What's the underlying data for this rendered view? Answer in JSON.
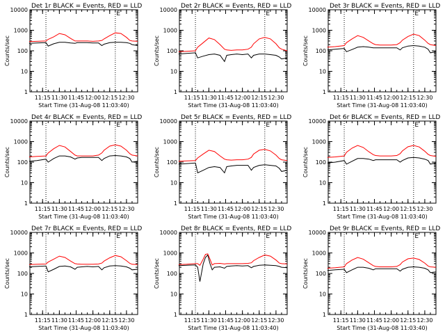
{
  "chart_data": {
    "type": "line",
    "y_scale": "log",
    "ylim": [
      1,
      10000
    ],
    "yticks": [
      1,
      10,
      100,
      1000,
      10000
    ],
    "ytick_labels": [
      "1",
      "10",
      "100",
      "1000",
      "10000"
    ],
    "xlim": [
      "11:03:40",
      "12:40:00"
    ],
    "xticks": [
      "11:15",
      "11:30",
      "11:45",
      "12:00",
      "12:15",
      "12:30"
    ],
    "vlines": [
      "11:18",
      "12:20"
    ],
    "ylabel": "Counts/sec",
    "xlabel": "Start Time (31-Aug-08 11:03:40)",
    "series_colors": {
      "events": "#000000",
      "lld": "#ff0000"
    },
    "panels": [
      {
        "title": "Det 1r BLACK = Events, RED = LLD",
        "marker": "E",
        "x": [
          "11:03",
          "11:10",
          "11:18",
          "11:20",
          "11:25",
          "11:30",
          "11:35",
          "11:40",
          "11:44",
          "11:46",
          "11:50",
          "11:55",
          "12:00",
          "12:05",
          "12:08",
          "12:10",
          "12:15",
          "12:20",
          "12:25",
          "12:30",
          "12:33",
          "12:35",
          "12:40"
        ],
        "events": [
          230,
          240,
          250,
          170,
          220,
          260,
          260,
          240,
          230,
          250,
          250,
          250,
          240,
          240,
          180,
          210,
          250,
          260,
          260,
          250,
          230,
          200,
          180
        ],
        "lld": [
          280,
          290,
          300,
          360,
          480,
          700,
          600,
          400,
          300,
          300,
          300,
          300,
          290,
          300,
          320,
          380,
          550,
          750,
          700,
          450,
          320,
          300,
          290
        ]
      },
      {
        "title": "Det 2r BLACK = Events, RED = LLD",
        "marker": "E",
        "x": [
          "11:03",
          "11:10",
          "11:18",
          "11:20",
          "11:25",
          "11:30",
          "11:35",
          "11:40",
          "11:44",
          "11:46",
          "11:50",
          "11:55",
          "12:00",
          "12:05",
          "12:08",
          "12:10",
          "12:15",
          "12:20",
          "12:25",
          "12:30",
          "12:33",
          "12:35",
          "12:40"
        ],
        "events": [
          70,
          75,
          80,
          45,
          55,
          65,
          70,
          60,
          30,
          60,
          65,
          70,
          65,
          70,
          45,
          60,
          70,
          70,
          65,
          60,
          50,
          40,
          45
        ],
        "lld": [
          90,
          95,
          100,
          150,
          250,
          420,
          350,
          200,
          120,
          110,
          105,
          110,
          110,
          120,
          150,
          220,
          380,
          450,
          380,
          220,
          140,
          120,
          100
        ]
      },
      {
        "title": "Det 3r BLACK = Events, RED = LLD",
        "marker": "E",
        "x": [
          "11:03",
          "11:10",
          "11:18",
          "11:20",
          "11:25",
          "11:30",
          "11:35",
          "11:40",
          "11:44",
          "11:46",
          "11:50",
          "11:55",
          "12:00",
          "12:05",
          "12:08",
          "12:10",
          "12:15",
          "12:20",
          "12:25",
          "12:30",
          "12:33",
          "12:35",
          "12:40"
        ],
        "events": [
          110,
          120,
          130,
          90,
          115,
          150,
          160,
          150,
          140,
          140,
          140,
          140,
          140,
          140,
          110,
          140,
          170,
          180,
          170,
          150,
          120,
          80,
          90
        ],
        "lld": [
          150,
          160,
          180,
          250,
          380,
          550,
          450,
          300,
          220,
          200,
          190,
          190,
          190,
          200,
          250,
          330,
          500,
          650,
          550,
          330,
          230,
          200,
          180
        ]
      },
      {
        "title": "Det 4r BLACK = Events, RED = LLD",
        "marker": "E",
        "x": [
          "11:03",
          "11:10",
          "11:18",
          "11:20",
          "11:25",
          "11:30",
          "11:35",
          "11:40",
          "11:44",
          "11:46",
          "11:50",
          "11:55",
          "12:00",
          "12:05",
          "12:08",
          "12:10",
          "12:15",
          "12:20",
          "12:25",
          "12:30",
          "12:33",
          "12:35",
          "12:40"
        ],
        "events": [
          110,
          120,
          140,
          100,
          150,
          200,
          200,
          180,
          140,
          160,
          170,
          170,
          170,
          170,
          120,
          150,
          200,
          210,
          200,
          180,
          150,
          100,
          110
        ],
        "lld": [
          180,
          190,
          200,
          280,
          450,
          650,
          550,
          330,
          220,
          200,
          200,
          200,
          200,
          220,
          280,
          380,
          600,
          700,
          600,
          380,
          260,
          220,
          200
        ]
      },
      {
        "title": "Det 5r BLACK = Events, RED = LLD",
        "marker": "E",
        "x": [
          "11:03",
          "11:10",
          "11:18",
          "11:20",
          "11:25",
          "11:30",
          "11:35",
          "11:40",
          "11:44",
          "11:46",
          "11:50",
          "11:55",
          "12:00",
          "12:05",
          "12:08",
          "12:10",
          "12:15",
          "12:20",
          "12:25",
          "12:30",
          "12:33",
          "12:35",
          "12:40"
        ],
        "events": [
          80,
          85,
          90,
          30,
          40,
          55,
          60,
          55,
          30,
          60,
          65,
          70,
          70,
          70,
          40,
          55,
          70,
          75,
          70,
          65,
          50,
          35,
          40
        ],
        "lld": [
          110,
          115,
          120,
          160,
          250,
          380,
          330,
          200,
          140,
          130,
          125,
          130,
          130,
          140,
          170,
          250,
          380,
          420,
          350,
          220,
          150,
          130,
          120
        ]
      },
      {
        "title": "Det 6r BLACK = Events, RED = LLD",
        "marker": "E",
        "x": [
          "11:03",
          "11:10",
          "11:18",
          "11:20",
          "11:25",
          "11:30",
          "11:35",
          "11:40",
          "11:44",
          "11:46",
          "11:50",
          "11:55",
          "12:00",
          "12:05",
          "12:08",
          "12:10",
          "12:15",
          "12:20",
          "12:25",
          "12:30",
          "12:33",
          "12:35",
          "12:40"
        ],
        "events": [
          90,
          100,
          120,
          80,
          110,
          150,
          150,
          140,
          120,
          130,
          130,
          130,
          130,
          130,
          100,
          120,
          160,
          170,
          160,
          140,
          120,
          80,
          90
        ],
        "lld": [
          170,
          180,
          200,
          300,
          480,
          650,
          520,
          320,
          230,
          210,
          200,
          200,
          200,
          210,
          260,
          350,
          560,
          650,
          550,
          340,
          240,
          210,
          190
        ]
      },
      {
        "title": "Det 7r BLACK = Events, RED = LLD",
        "marker": "E",
        "x": [
          "11:03",
          "11:10",
          "11:18",
          "11:20",
          "11:25",
          "11:30",
          "11:35",
          "11:40",
          "11:44",
          "11:46",
          "11:50",
          "11:55",
          "12:00",
          "12:05",
          "12:08",
          "12:10",
          "12:15",
          "12:20",
          "12:25",
          "12:30",
          "12:33",
          "12:35",
          "12:40"
        ],
        "events": [
          210,
          220,
          230,
          120,
          160,
          220,
          230,
          210,
          160,
          200,
          210,
          220,
          210,
          220,
          150,
          190,
          230,
          240,
          230,
          210,
          180,
          150,
          160
        ],
        "lld": [
          270,
          280,
          290,
          360,
          500,
          700,
          600,
          400,
          300,
          290,
          280,
          280,
          280,
          290,
          320,
          400,
          580,
          750,
          650,
          420,
          310,
          280,
          270
        ]
      },
      {
        "title": "Det 8r BLACK = Events, RED = LLD",
        "marker": "E",
        "x": [
          "11:03",
          "11:10",
          "11:18",
          "11:20",
          "11:22",
          "11:25",
          "11:27",
          "11:29",
          "11:31",
          "11:33",
          "11:35",
          "11:40",
          "11:44",
          "11:46",
          "11:50",
          "11:55",
          "12:00",
          "12:05",
          "12:08",
          "12:10",
          "12:15",
          "12:20",
          "12:25",
          "12:30",
          "12:33",
          "12:35",
          "12:40"
        ],
        "events": [
          240,
          250,
          260,
          200,
          40,
          300,
          600,
          800,
          300,
          150,
          200,
          210,
          180,
          220,
          230,
          240,
          230,
          240,
          190,
          220,
          250,
          260,
          250,
          240,
          220,
          200,
          190
        ],
        "lld": [
          270,
          280,
          300,
          300,
          250,
          500,
          850,
          900,
          500,
          260,
          300,
          310,
          290,
          300,
          300,
          300,
          300,
          310,
          330,
          420,
          600,
          800,
          700,
          450,
          320,
          300,
          290
        ]
      },
      {
        "title": "Det 9r BLACK = Events, RED = LLD",
        "marker": "E",
        "x": [
          "11:03",
          "11:10",
          "11:18",
          "11:20",
          "11:25",
          "11:30",
          "11:35",
          "11:40",
          "11:44",
          "11:46",
          "11:50",
          "11:55",
          "12:00",
          "12:05",
          "12:08",
          "12:10",
          "12:15",
          "12:20",
          "12:25",
          "12:30",
          "12:33",
          "12:35",
          "12:40"
        ],
        "events": [
          140,
          150,
          160,
          110,
          150,
          200,
          200,
          180,
          150,
          170,
          170,
          170,
          170,
          170,
          130,
          160,
          200,
          210,
          200,
          180,
          150,
          110,
          120
        ],
        "lld": [
          180,
          190,
          210,
          300,
          450,
          600,
          500,
          330,
          240,
          220,
          210,
          210,
          210,
          220,
          270,
          360,
          520,
          560,
          480,
          320,
          230,
          210,
          200
        ]
      }
    ]
  }
}
